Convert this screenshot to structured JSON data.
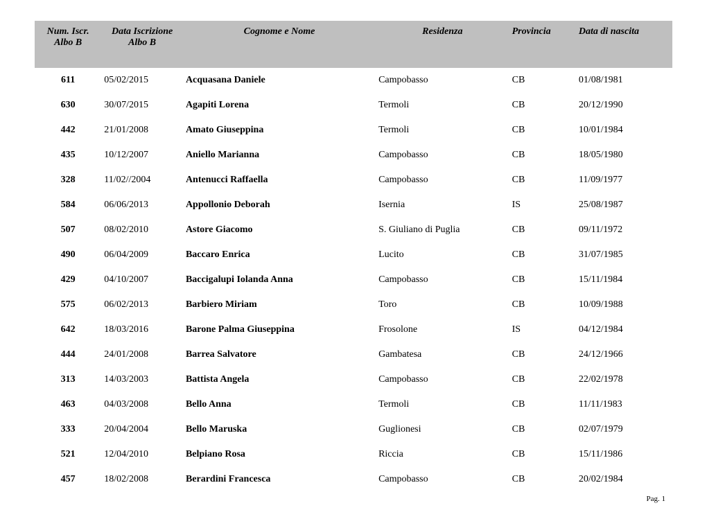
{
  "headers": {
    "num_l1": "Num. Iscr.",
    "num_l2": "Albo B",
    "date_l1": "Data Iscrizione",
    "date_l2": "Albo B",
    "name": "Cognome e Nome",
    "res": "Residenza",
    "prov": "Provincia",
    "birth": "Data di nascita"
  },
  "rows": [
    {
      "num": "611",
      "date": "05/02/2015",
      "name": "Acquasana Daniele",
      "res": "Campobasso",
      "prov": "CB",
      "birth": "01/08/1981"
    },
    {
      "num": "630",
      "date": "30/07/2015",
      "name": "Agapiti Lorena",
      "res": "Termoli",
      "prov": "CB",
      "birth": "20/12/1990"
    },
    {
      "num": "442",
      "date": "21/01/2008",
      "name": "Amato Giuseppina",
      "res": "Termoli",
      "prov": "CB",
      "birth": "10/01/1984"
    },
    {
      "num": "435",
      "date": "10/12/2007",
      "name": "Aniello Marianna",
      "res": "Campobasso",
      "prov": "CB",
      "birth": "18/05/1980"
    },
    {
      "num": "328",
      "date": "11/02//2004",
      "name": "Antenucci Raffaella",
      "res": "Campobasso",
      "prov": "CB",
      "birth": "11/09/1977"
    },
    {
      "num": "584",
      "date": "06/06/2013",
      "name": "Appollonio Deborah",
      "res": "Isernia",
      "prov": "IS",
      "birth": "25/08/1987"
    },
    {
      "num": "507",
      "date": "08/02/2010",
      "name": "Astore Giacomo",
      "res": " S. Giuliano di Puglia",
      "prov": "CB",
      "birth": "09/11/1972"
    },
    {
      "num": "490",
      "date": "06/04/2009",
      "name": "Baccaro Enrica",
      "res": "Lucito",
      "prov": "CB",
      "birth": "31/07/1985"
    },
    {
      "num": "429",
      "date": "04/10/2007",
      "name": "Baccigalupi Iolanda Anna",
      "res": "Campobasso",
      "prov": "CB",
      "birth": "15/11/1984"
    },
    {
      "num": "575",
      "date": "06/02/2013",
      "name": "Barbiero Miriam",
      "res": "Toro",
      "prov": "CB",
      "birth": "10/09/1988"
    },
    {
      "num": "642",
      "date": "18/03/2016",
      "name": "Barone Palma Giuseppina",
      "res": "Frosolone",
      "prov": "IS",
      "birth": "04/12/1984"
    },
    {
      "num": "444",
      "date": "24/01/2008",
      "name": "Barrea Salvatore",
      "res": "Gambatesa",
      "prov": "CB",
      "birth": "24/12/1966"
    },
    {
      "num": "313",
      "date": "14/03/2003",
      "name": "Battista Angela",
      "res": "Campobasso",
      "prov": "CB",
      "birth": "22/02/1978"
    },
    {
      "num": "463",
      "date": "04/03/2008",
      "name": "Bello Anna",
      "res": "Termoli",
      "prov": "CB",
      "birth": "11/11/1983"
    },
    {
      "num": "333",
      "date": "20/04/2004",
      "name": "Bello Maruska",
      "res": "Guglionesi",
      "prov": "CB",
      "birth": "02/07/1979"
    },
    {
      "num": "521",
      "date": "12/04/2010",
      "name": "Belpiano Rosa",
      "res": "Riccia",
      "prov": "CB",
      "birth": "15/11/1986"
    },
    {
      "num": "457",
      "date": "18/02/2008",
      "name": "Berardini Francesca",
      "res": "Campobasso",
      "prov": "CB",
      "birth": "20/02/1984"
    }
  ],
  "footer": "Pag. 1"
}
